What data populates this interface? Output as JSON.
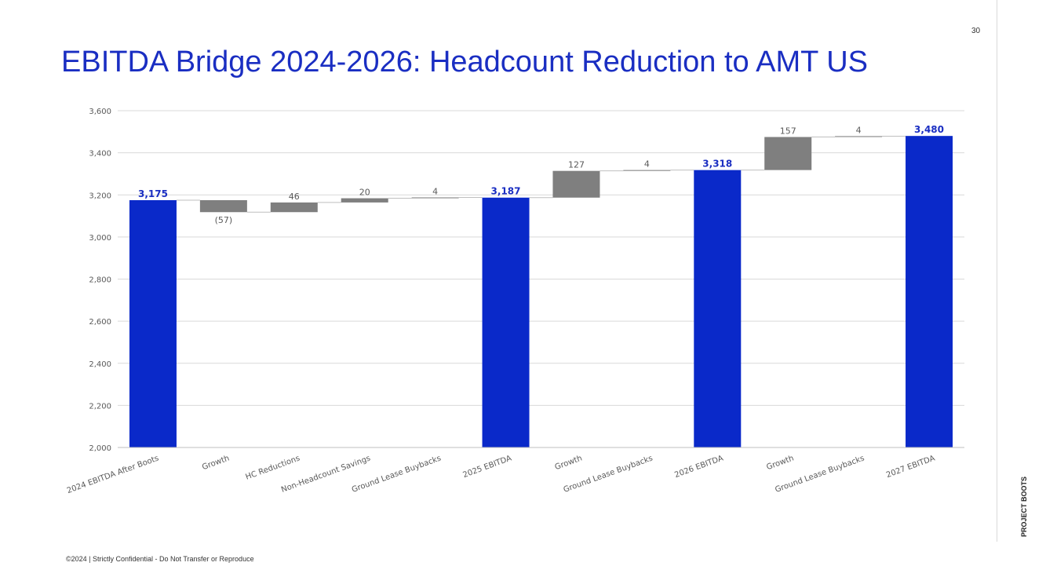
{
  "page": {
    "number": "30",
    "title": "EBITDA Bridge 2024-2026: Headcount Reduction to AMT US",
    "side_label": "PROJECT BOOTS",
    "footer": "©2024 | Strictly Confidential - Do Not Transfer or Reproduce"
  },
  "colors": {
    "total": "#0a29c9",
    "step": "#7f7f7f",
    "title": "#1a2ec2"
  },
  "chart_data": {
    "type": "bar",
    "subtype": "waterfall",
    "ylim": [
      2000,
      3600
    ],
    "yticks": [
      2000,
      2200,
      2400,
      2600,
      2800,
      3000,
      3200,
      3400,
      3600
    ],
    "ytick_labels": [
      "2,000",
      "2,200",
      "2,400",
      "2,600",
      "2,800",
      "3,000",
      "3,200",
      "3,400",
      "3,600"
    ],
    "grid": true,
    "legend": "none",
    "categories": [
      "2024 EBITDA After Boots",
      "Growth",
      "HC Reductions",
      "Non-Headcount Savings",
      "Ground Lease Buybacks",
      "2025 EBITDA",
      "Growth",
      "Ground Lease Buybacks",
      "2026 EBITDA",
      "Growth",
      "Ground Lease Buybacks",
      "2027 EBITDA"
    ],
    "kinds": [
      "total",
      "delta",
      "delta",
      "delta",
      "delta",
      "total",
      "delta",
      "delta",
      "total",
      "delta",
      "delta",
      "total"
    ],
    "values": [
      3175,
      -57,
      46,
      20,
      4,
      3187,
      127,
      4,
      3318,
      157,
      4,
      3480
    ],
    "data_labels": [
      "3,175",
      "(57)",
      "46",
      "20",
      "4",
      "3,187",
      "127",
      "4",
      "3,318",
      "157",
      "4",
      "3,480"
    ]
  }
}
